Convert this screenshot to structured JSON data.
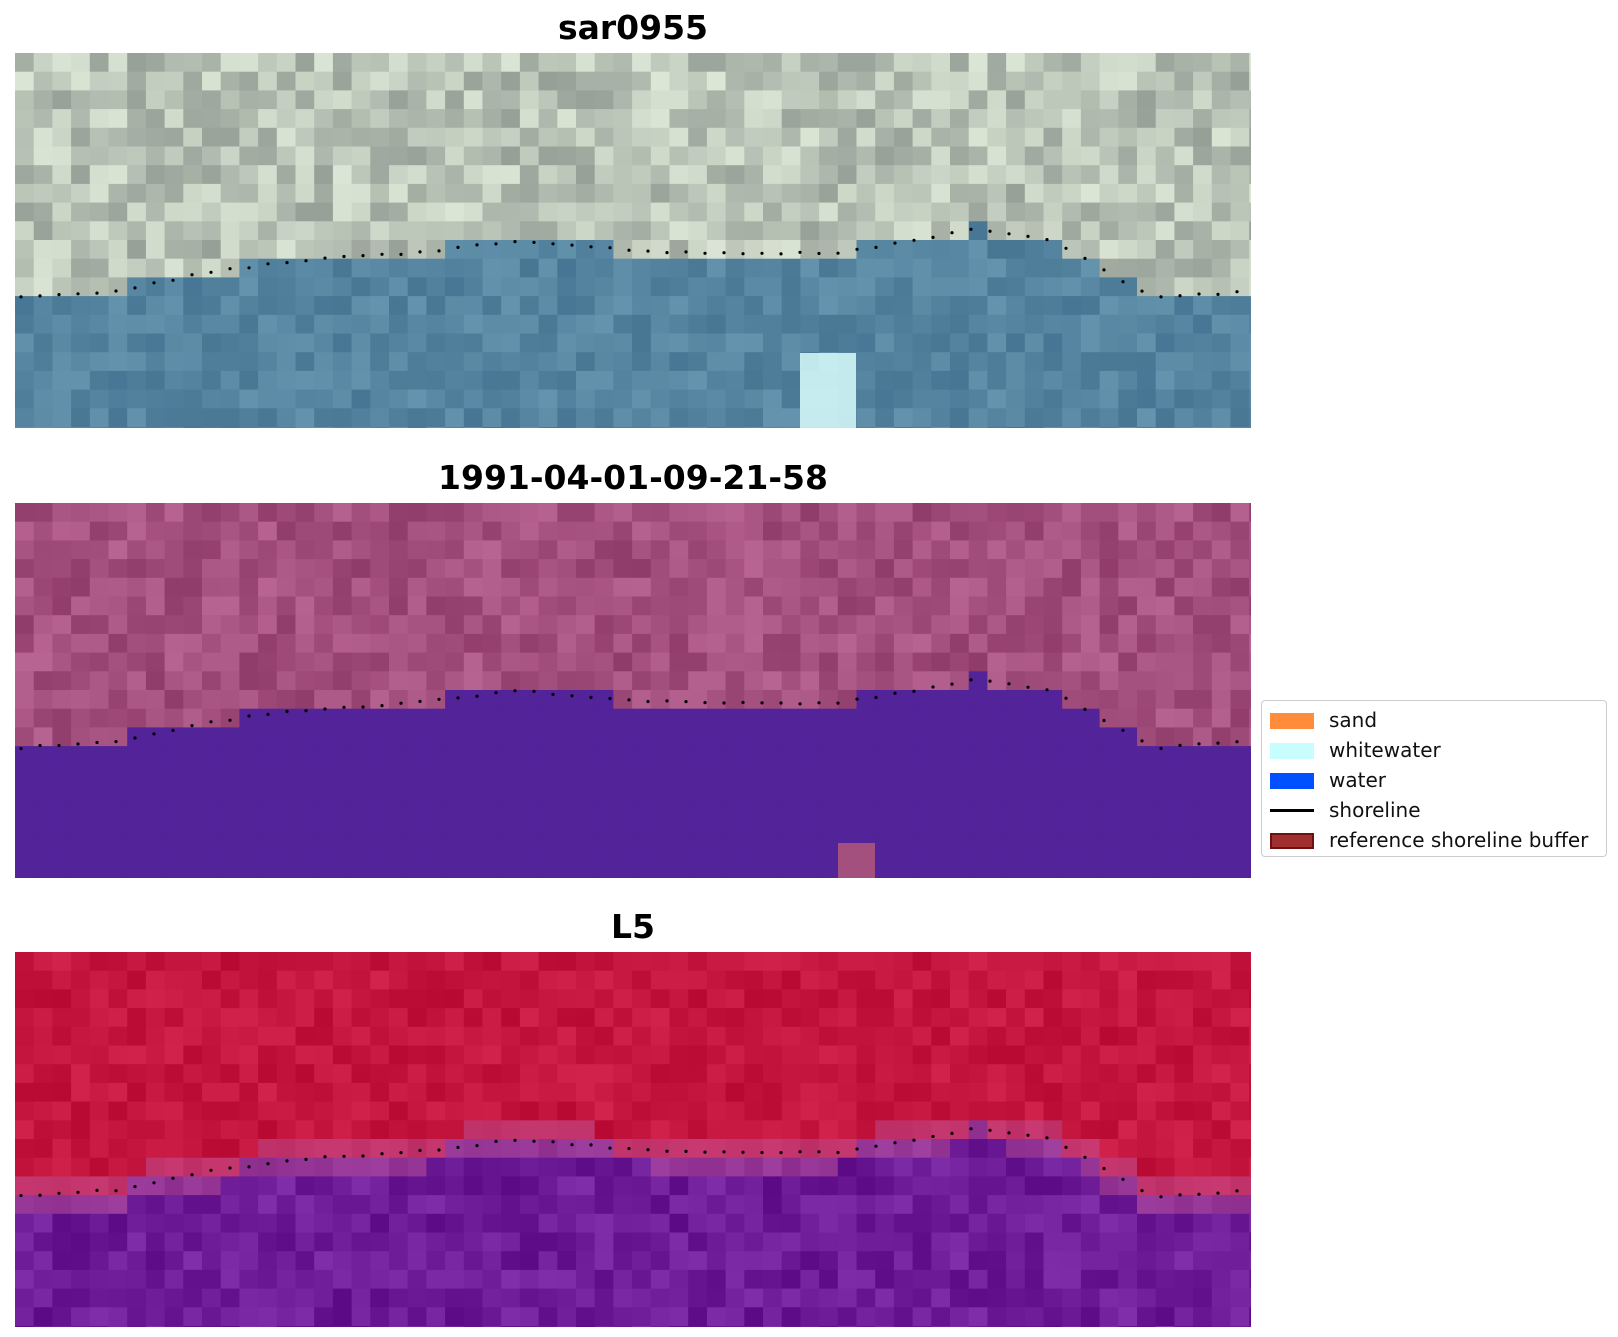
{
  "panels": [
    {
      "id": "rgb",
      "title": "sar0955"
    },
    {
      "id": "classified",
      "title": "1991-04-01-09-21-58"
    },
    {
      "id": "index",
      "title": "L5"
    }
  ],
  "legend": {
    "items": [
      {
        "label": "sand",
        "kind": "patch",
        "color": "#ff8c3b"
      },
      {
        "label": "whitewater",
        "kind": "patch",
        "color": "#c8fdfd"
      },
      {
        "label": "water",
        "kind": "patch",
        "color": "#0050ff"
      },
      {
        "label": "shoreline",
        "kind": "line",
        "color": "#000000"
      },
      {
        "label": "reference shoreline buffer",
        "kind": "patch",
        "color": "#a03030",
        "edge": "#6e1010"
      }
    ]
  },
  "colors": {
    "rgb_land": "#b9c3b6",
    "rgb_water": "#5585a0",
    "class_land": "#a4507e",
    "class_water": "#53239a",
    "index_land": "#c4163f",
    "index_water": "#6e1c98",
    "shoreline": "#000000"
  }
}
